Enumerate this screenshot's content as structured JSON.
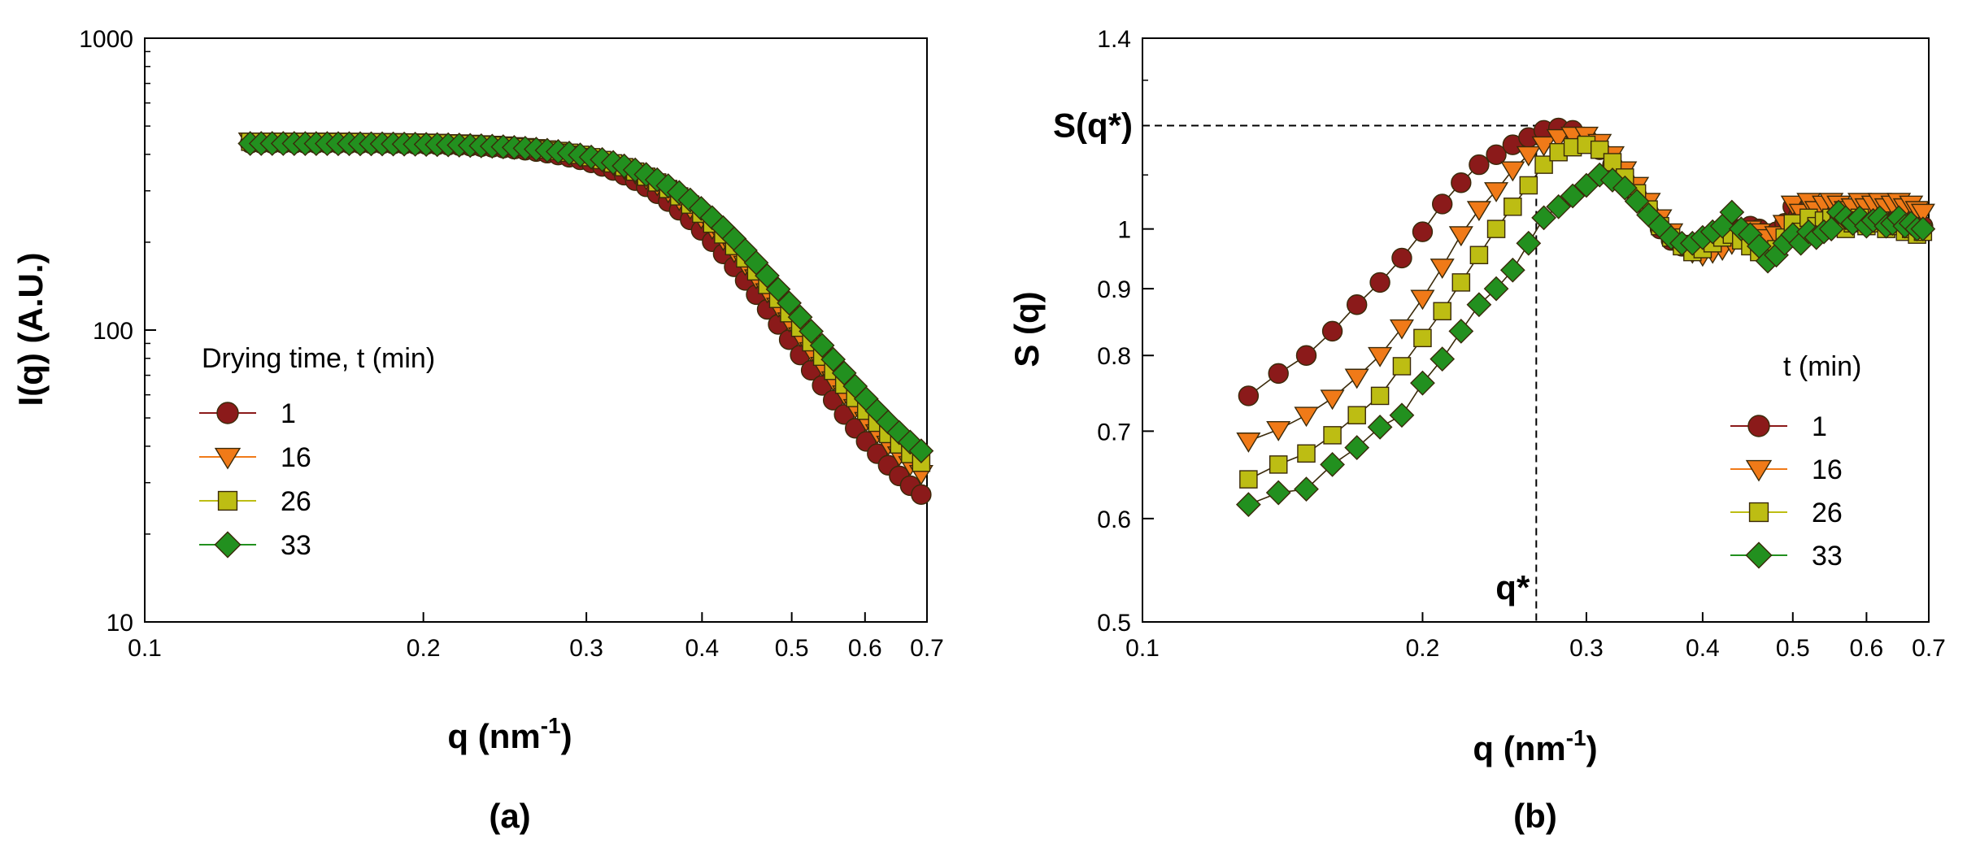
{
  "colors": {
    "t1": "#8b1a1a",
    "t16": "#f07a18",
    "t26": "#bdbd13",
    "t33": "#22901f",
    "outline": "#3a2a0a",
    "axis": "#000000"
  },
  "chart_data": [
    {
      "type": "scatter",
      "panel_label": "(a)",
      "xlabel": "q (nm",
      "xlabel_sup": "-1",
      "xlabel_close": ")",
      "ylabel": "I(q)  (A.U.)",
      "xscale": "log",
      "yscale": "log",
      "xlim": [
        0.1,
        0.7
      ],
      "ylim": [
        10,
        1000
      ],
      "xticks": [
        {
          "value": 0.1,
          "label": "0.1"
        },
        {
          "value": 0.2,
          "label": "0.2"
        },
        {
          "value": 0.3,
          "label": "0.3"
        },
        {
          "value": 0.4,
          "label": "0.4"
        },
        {
          "value": 0.5,
          "label": "0.5"
        },
        {
          "value": 0.6,
          "label": "0.6"
        },
        {
          "value": 0.7,
          "label": "0.7"
        }
      ],
      "yticks": [
        {
          "value": 10,
          "label": "10"
        },
        {
          "value": 100,
          "label": "100"
        },
        {
          "value": 1000,
          "label": "1000"
        }
      ],
      "legend_title": "Drying time, t (min)",
      "legend_position": "center-left",
      "series": [
        {
          "name": "1",
          "marker": "circle",
          "color_key": "t1",
          "params": {
            "I0": 420,
            "qc": 0.395,
            "n": 6.6,
            "B": 17
          }
        },
        {
          "name": "16",
          "marker": "triangle-down",
          "color_key": "t16",
          "params": {
            "I0": 425,
            "qc": 0.405,
            "n": 6.6,
            "B": 20
          }
        },
        {
          "name": "26",
          "marker": "square",
          "color_key": "t26",
          "params": {
            "I0": 420,
            "qc": 0.41,
            "n": 6.6,
            "B": 22
          }
        },
        {
          "name": "33",
          "marker": "diamond",
          "color_key": "t33",
          "params": {
            "I0": 412,
            "qc": 0.418,
            "n": 6.6,
            "B": 24
          }
        }
      ],
      "q_range": [
        0.13,
        0.69
      ],
      "q_points": 62
    },
    {
      "type": "scatter",
      "panel_label": "(b)",
      "xlabel": "q (nm",
      "xlabel_sup": "-1",
      "xlabel_close": ")",
      "ylabel": "S (q)",
      "xscale": "log",
      "yscale": "log",
      "xlim": [
        0.1,
        0.7
      ],
      "ylim": [
        0.5,
        1.4
      ],
      "xticks": [
        {
          "value": 0.1,
          "label": "0.1"
        },
        {
          "value": 0.2,
          "label": "0.2"
        },
        {
          "value": 0.3,
          "label": "0.3"
        },
        {
          "value": 0.4,
          "label": "0.4"
        },
        {
          "value": 0.5,
          "label": "0.5"
        },
        {
          "value": 0.6,
          "label": "0.6"
        },
        {
          "value": 0.7,
          "label": "0.7"
        }
      ],
      "yticks": [
        {
          "value": 0.5,
          "label": "0.5"
        },
        {
          "value": 0.6,
          "label": "0.6"
        },
        {
          "value": 0.7,
          "label": "0.7"
        },
        {
          "value": 0.8,
          "label": "0.8"
        },
        {
          "value": 0.9,
          "label": "0.9"
        },
        {
          "value": 1.0,
          "label": "1"
        },
        {
          "value": 1.4,
          "label": "1.4"
        }
      ],
      "legend_title": "t (min)",
      "legend_position": "center-right",
      "annotations": {
        "s_qstar_label": "S(q*)",
        "qstar_label": "q*",
        "qstar": 0.265,
        "s_qstar": 1.2
      },
      "series": [
        {
          "name": "1",
          "marker": "circle",
          "color_key": "t1",
          "x": [
            0.13,
            0.14,
            0.15,
            0.16,
            0.17,
            0.18,
            0.19,
            0.2,
            0.21,
            0.22,
            0.23,
            0.24,
            0.25,
            0.26,
            0.27,
            0.28,
            0.29,
            0.3,
            0.31,
            0.32,
            0.33,
            0.34,
            0.35,
            0.36,
            0.37,
            0.38,
            0.39,
            0.4,
            0.41,
            0.42,
            0.43,
            0.44,
            0.45,
            0.46,
            0.47,
            0.48,
            0.49,
            0.5,
            0.51,
            0.52,
            0.53,
            0.54,
            0.55,
            0.56,
            0.57,
            0.58,
            0.59,
            0.6,
            0.61,
            0.62,
            0.63,
            0.64,
            0.65,
            0.66,
            0.67,
            0.68,
            0.69
          ],
          "y": [
            0.745,
            0.775,
            0.8,
            0.835,
            0.875,
            0.91,
            0.95,
            0.995,
            1.045,
            1.085,
            1.12,
            1.14,
            1.16,
            1.175,
            1.19,
            1.195,
            1.19,
            1.175,
            1.15,
            1.12,
            1.09,
            1.06,
            1.03,
            1.0,
            0.98,
            0.97,
            0.965,
            0.97,
            0.975,
            0.985,
            0.995,
            1.0,
            1.005,
            1.0,
            0.99,
            0.995,
            1.01,
            1.04,
            1.02,
            1.03,
            1.015,
            1.025,
            1.03,
            1.02,
            1.01,
            1.02,
            1.035,
            1.02,
            1.025,
            1.03,
            1.015,
            1.02,
            1.025,
            1.01,
            1.02,
            1.01,
            1.005
          ]
        },
        {
          "name": "16",
          "marker": "triangle-down",
          "color_key": "t16",
          "x": [
            0.13,
            0.14,
            0.15,
            0.16,
            0.17,
            0.18,
            0.19,
            0.2,
            0.21,
            0.22,
            0.23,
            0.24,
            0.25,
            0.26,
            0.27,
            0.28,
            0.29,
            0.3,
            0.31,
            0.32,
            0.33,
            0.34,
            0.35,
            0.36,
            0.37,
            0.38,
            0.39,
            0.4,
            0.41,
            0.42,
            0.43,
            0.44,
            0.45,
            0.46,
            0.47,
            0.48,
            0.49,
            0.5,
            0.51,
            0.52,
            0.53,
            0.54,
            0.55,
            0.56,
            0.57,
            0.58,
            0.59,
            0.6,
            0.61,
            0.62,
            0.63,
            0.64,
            0.65,
            0.66,
            0.67,
            0.68,
            0.69
          ],
          "y": [
            0.688,
            0.702,
            0.72,
            0.742,
            0.77,
            0.8,
            0.84,
            0.885,
            0.935,
            0.99,
            1.035,
            1.07,
            1.11,
            1.14,
            1.16,
            1.175,
            1.18,
            1.18,
            1.165,
            1.14,
            1.11,
            1.08,
            1.05,
            1.02,
            0.995,
            0.975,
            0.96,
            0.955,
            0.96,
            0.965,
            0.975,
            0.99,
            1.0,
            0.995,
            0.985,
            0.99,
            1.01,
            1.045,
            1.03,
            1.05,
            1.035,
            1.045,
            1.05,
            1.045,
            1.035,
            1.04,
            1.05,
            1.04,
            1.045,
            1.05,
            1.04,
            1.045,
            1.05,
            1.04,
            1.045,
            1.035,
            1.03
          ]
        },
        {
          "name": "26",
          "marker": "square",
          "color_key": "t26",
          "x": [
            0.13,
            0.14,
            0.15,
            0.16,
            0.17,
            0.18,
            0.19,
            0.2,
            0.21,
            0.22,
            0.23,
            0.24,
            0.25,
            0.26,
            0.27,
            0.28,
            0.29,
            0.3,
            0.31,
            0.32,
            0.33,
            0.34,
            0.35,
            0.36,
            0.37,
            0.38,
            0.39,
            0.4,
            0.41,
            0.42,
            0.43,
            0.44,
            0.45,
            0.46,
            0.47,
            0.48,
            0.49,
            0.5,
            0.51,
            0.52,
            0.53,
            0.54,
            0.55,
            0.56,
            0.57,
            0.58,
            0.59,
            0.6,
            0.61,
            0.62,
            0.63,
            0.64,
            0.65,
            0.66,
            0.67,
            0.68,
            0.69
          ],
          "y": [
            0.643,
            0.66,
            0.673,
            0.695,
            0.72,
            0.745,
            0.785,
            0.825,
            0.865,
            0.91,
            0.955,
            1.0,
            1.04,
            1.08,
            1.12,
            1.145,
            1.155,
            1.16,
            1.15,
            1.125,
            1.095,
            1.065,
            1.035,
            1.005,
            0.985,
            0.97,
            0.96,
            0.965,
            0.975,
            0.985,
            0.99,
            0.98,
            0.97,
            0.96,
            0.955,
            0.965,
            0.985,
            1.01,
            0.995,
            1.02,
            1.005,
            1.015,
            1.02,
            1.01,
            1.0,
            1.01,
            1.02,
            1.005,
            1.01,
            1.015,
            1.0,
            1.005,
            1.01,
            0.995,
            1.0,
            0.99,
            0.995
          ]
        },
        {
          "name": "33",
          "marker": "diamond",
          "color_key": "t33",
          "x": [
            0.13,
            0.14,
            0.15,
            0.16,
            0.17,
            0.18,
            0.19,
            0.2,
            0.21,
            0.22,
            0.23,
            0.24,
            0.25,
            0.26,
            0.27,
            0.28,
            0.29,
            0.3,
            0.31,
            0.32,
            0.33,
            0.34,
            0.35,
            0.36,
            0.37,
            0.38,
            0.39,
            0.4,
            0.41,
            0.42,
            0.43,
            0.44,
            0.45,
            0.46,
            0.47,
            0.48,
            0.49,
            0.5,
            0.51,
            0.52,
            0.53,
            0.54,
            0.55,
            0.56,
            0.57,
            0.58,
            0.59,
            0.6,
            0.61,
            0.62,
            0.63,
            0.64,
            0.65,
            0.66,
            0.67,
            0.68,
            0.69
          ],
          "y": [
            0.615,
            0.628,
            0.632,
            0.66,
            0.68,
            0.705,
            0.72,
            0.762,
            0.795,
            0.835,
            0.875,
            0.9,
            0.93,
            0.975,
            1.02,
            1.04,
            1.06,
            1.08,
            1.1,
            1.09,
            1.075,
            1.05,
            1.025,
            1.005,
            0.985,
            0.975,
            0.975,
            0.985,
            0.995,
            1.005,
            1.03,
            1.0,
            0.99,
            0.97,
            0.945,
            0.955,
            0.975,
            0.99,
            0.975,
            0.995,
            0.985,
            0.995,
            1.0,
            1.03,
            1.02,
            1.01,
            1.02,
            1.005,
            1.015,
            1.02,
            1.005,
            1.01,
            1.02,
            1.005,
            1.01,
            1.0,
            1.0
          ]
        }
      ]
    }
  ]
}
